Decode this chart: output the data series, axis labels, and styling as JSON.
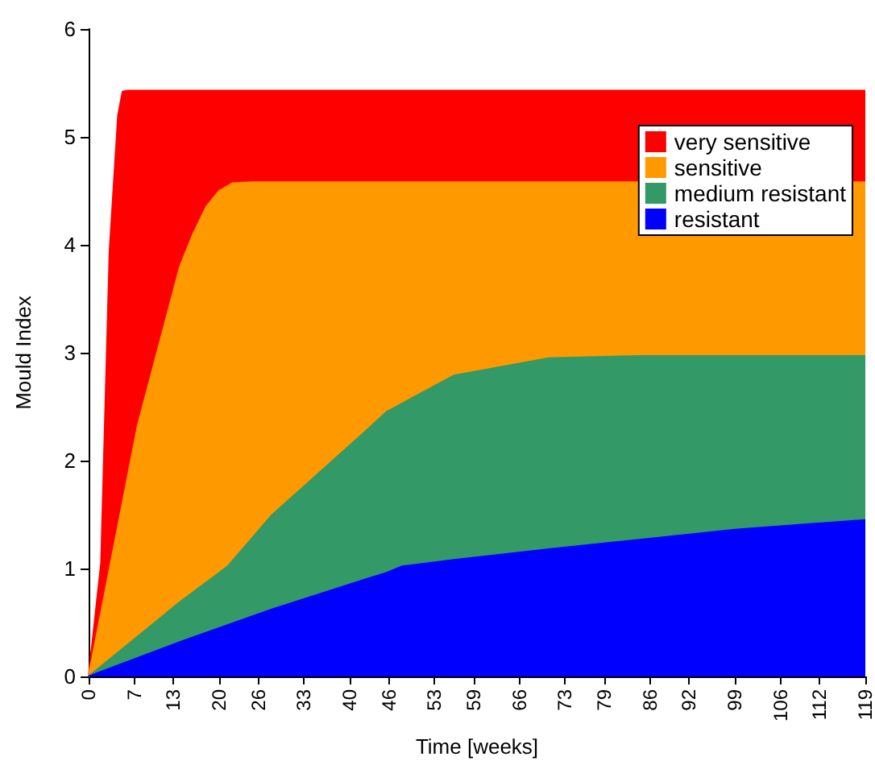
{
  "chart_data": {
    "type": "area",
    "xlabel": "Time [weeks]",
    "ylabel": "Mould Index",
    "xlim": [
      0,
      119
    ],
    "xticks": [
      0,
      7,
      13,
      20,
      26,
      33,
      40,
      46,
      53,
      59,
      66,
      73,
      79,
      86,
      92,
      99,
      106,
      112,
      119
    ],
    "ylim": [
      0,
      6
    ],
    "yticks": [
      0,
      1,
      2,
      3,
      4,
      5,
      6
    ],
    "legend": "top right",
    "grid": false,
    "series": [
      {
        "name": "very sensitive",
        "color": "#ff0000",
        "x": [
          0,
          1.9,
          3.2,
          4.5,
          5.2,
          6,
          119
        ],
        "values": [
          0,
          1.05,
          3.94,
          5.2,
          5.42,
          5.43,
          5.43
        ]
      },
      {
        "name": "sensitive",
        "color": "#ff9900",
        "x": [
          0,
          7.5,
          14,
          16,
          18,
          20,
          22,
          25,
          119
        ],
        "values": [
          0,
          2.32,
          3.8,
          4.1,
          4.35,
          4.5,
          4.57,
          4.58,
          4.58
        ]
      },
      {
        "name": "medium resistant",
        "color": "#339966",
        "x": [
          0,
          14,
          21.3,
          28,
          42.4,
          45.6,
          56,
          70.5,
          85,
          119
        ],
        "values": [
          0,
          0.69,
          1.02,
          1.49,
          2.27,
          2.45,
          2.79,
          2.95,
          2.97,
          2.97
        ]
      },
      {
        "name": "resistant",
        "color": "#0000ff",
        "x": [
          0,
          14,
          28,
          42.4,
          45.6,
          48,
          56,
          70.5,
          85,
          99,
          119
        ],
        "values": [
          0,
          0.32,
          0.62,
          0.9,
          0.96,
          1.02,
          1.08,
          1.18,
          1.27,
          1.36,
          1.45
        ]
      }
    ]
  }
}
